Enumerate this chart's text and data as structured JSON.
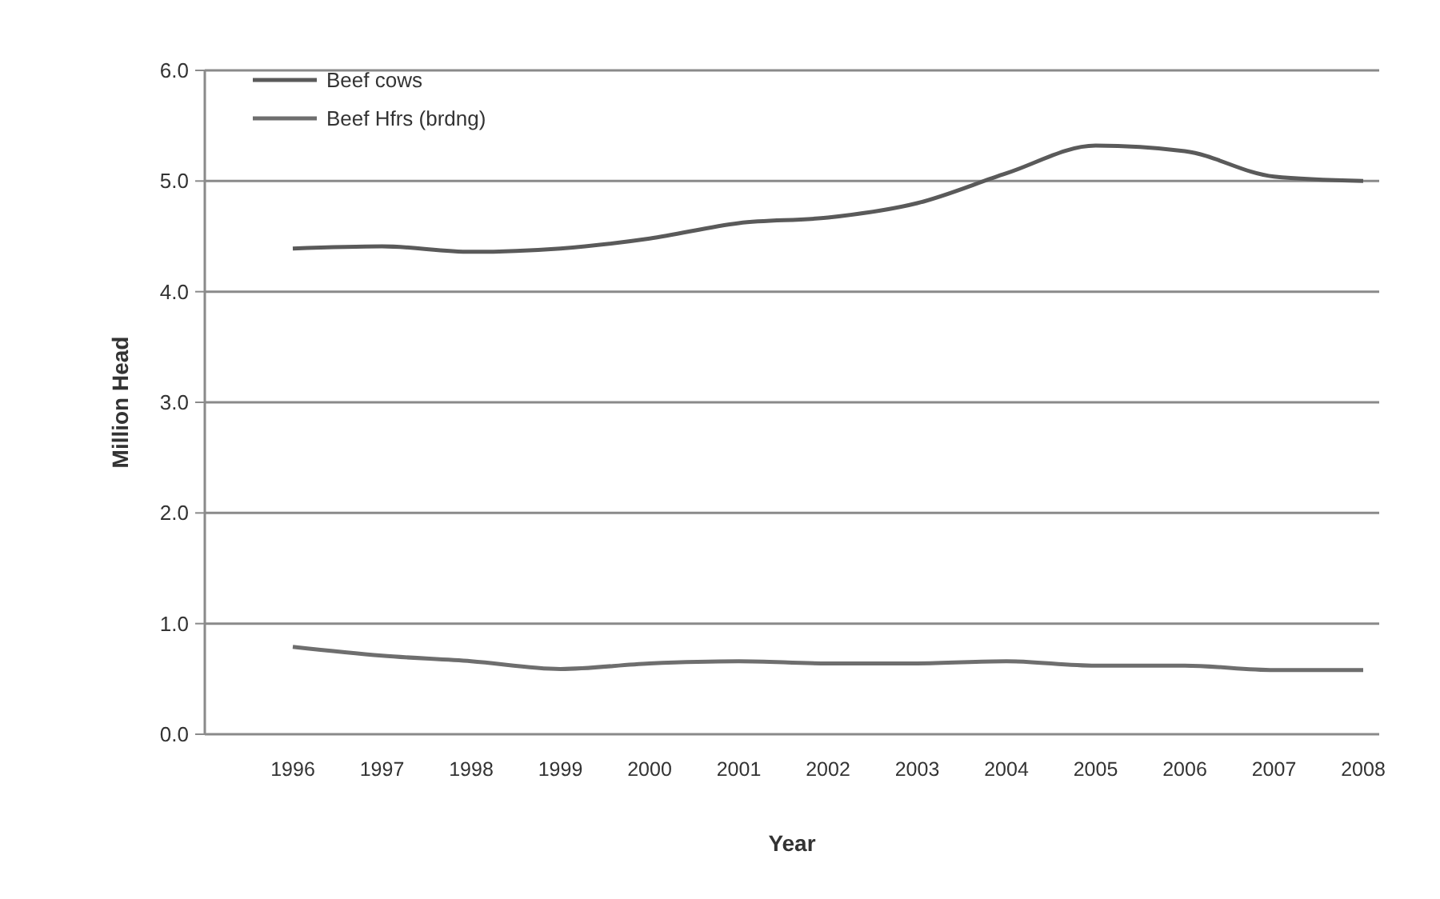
{
  "chart_data": {
    "type": "line",
    "xlabel": "Year",
    "ylabel": "Million Head",
    "categories": [
      "1996",
      "1997",
      "1998",
      "1999",
      "2000",
      "2001",
      "2002",
      "2003",
      "2004",
      "2005",
      "2006",
      "2007",
      "2008"
    ],
    "series": [
      {
        "name": "Beef cows",
        "color": "#5a5a5a",
        "values": [
          4.39,
          4.41,
          4.36,
          4.39,
          4.48,
          4.62,
          4.67,
          4.8,
          5.07,
          5.32,
          5.27,
          5.04,
          5.0
        ]
      },
      {
        "name": "Beef Hfrs (brdng)",
        "color": "#6e6e6e",
        "values": [
          0.79,
          0.71,
          0.66,
          0.59,
          0.64,
          0.66,
          0.64,
          0.64,
          0.66,
          0.62,
          0.62,
          0.58,
          0.58
        ]
      }
    ],
    "ylim": [
      0,
      6
    ],
    "yticks": [
      {
        "value": 0,
        "label": "0.0"
      },
      {
        "value": 1,
        "label": "1.0"
      },
      {
        "value": 2,
        "label": "2.0"
      },
      {
        "value": 3,
        "label": "3.0"
      },
      {
        "value": 4,
        "label": "4.0"
      },
      {
        "value": 5,
        "label": "5.0"
      },
      {
        "value": 6,
        "label": "6.0"
      }
    ],
    "grid": "y",
    "legend": "top left",
    "marker": "none",
    "line_style": "solid"
  }
}
